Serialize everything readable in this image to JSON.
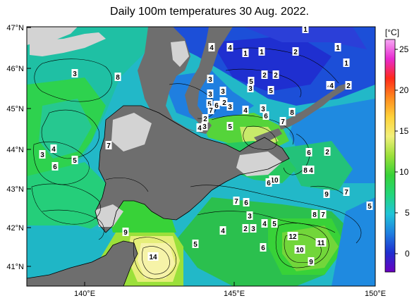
{
  "title": "Daily 100m temperatures 30 Aug. 2022.",
  "colorbar": {
    "unit": "[°C]",
    "ticks": [
      "25",
      "20",
      "15",
      "10",
      "5",
      "0"
    ],
    "stops": [
      "#6a00c0",
      "#1f2fd0",
      "#1f7fe0",
      "#20c4d8",
      "#22d67a",
      "#38d238",
      "#9be03a",
      "#f2f07a",
      "#ffd23a",
      "#ff8a1e",
      "#ff2a1a",
      "#e82ad0",
      "#f6a8f4"
    ]
  },
  "lat_labels": [
    "47°N",
    "46°N",
    "45°N",
    "44°N",
    "43°N",
    "42°N",
    "41°N"
  ],
  "lon_labels": [
    "140°E",
    "145°E",
    "150°E"
  ],
  "contour_labels": [
    {
      "t": "1"
    },
    {
      "t": "4"
    },
    {
      "t": "4"
    },
    {
      "t": "1"
    },
    {
      "t": "1"
    },
    {
      "t": "2"
    },
    {
      "t": "1"
    },
    {
      "t": "1"
    },
    {
      "t": "3"
    },
    {
      "t": "8"
    },
    {
      "t": "3"
    },
    {
      "t": "2"
    },
    {
      "t": "2"
    },
    {
      "t": "3"
    },
    {
      "t": "3"
    },
    {
      "t": "5"
    },
    {
      "t": "4"
    },
    {
      "t": "2"
    },
    {
      "t": "4"
    },
    {
      "t": "5"
    },
    {
      "t": "3"
    },
    {
      "t": "3"
    },
    {
      "t": "5"
    },
    {
      "t": "6"
    },
    {
      "t": "2"
    },
    {
      "t": "3"
    },
    {
      "t": "7"
    },
    {
      "t": "4"
    },
    {
      "t": "3"
    },
    {
      "t": "6"
    },
    {
      "t": "8"
    },
    {
      "t": "2"
    },
    {
      "t": "4"
    },
    {
      "t": "3"
    },
    {
      "t": "7"
    },
    {
      "t": "5"
    },
    {
      "t": "7"
    },
    {
      "t": "3"
    },
    {
      "t": "4"
    },
    {
      "t": "6"
    },
    {
      "t": "5"
    },
    {
      "t": "6"
    },
    {
      "t": "2"
    },
    {
      "t": "8"
    },
    {
      "t": "4"
    },
    {
      "t": "10"
    },
    {
      "t": "6"
    },
    {
      "t": "9"
    },
    {
      "t": "7"
    },
    {
      "t": "7"
    },
    {
      "t": "6"
    },
    {
      "t": "5"
    },
    {
      "t": "3"
    },
    {
      "t": "8"
    },
    {
      "t": "7"
    },
    {
      "t": "4"
    },
    {
      "t": "2"
    },
    {
      "t": "3"
    },
    {
      "t": "4"
    },
    {
      "t": "5"
    },
    {
      "t": "9"
    },
    {
      "t": "12"
    },
    {
      "t": "11"
    },
    {
      "t": "5"
    },
    {
      "t": "6"
    },
    {
      "t": "10"
    },
    {
      "t": "14"
    },
    {
      "t": "9"
    }
  ]
}
